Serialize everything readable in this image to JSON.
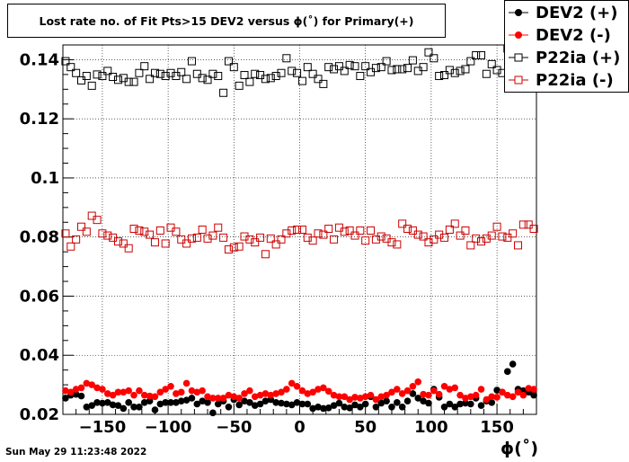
{
  "title": "Lost rate no. of Fit Pts>15 DEV2 versus ϕ(˚) for Primary(+)",
  "timestamp": "Sun May 29 11:23:48 2022",
  "colors": {
    "black": "#000000",
    "red": "#ff0000",
    "dark_red": "#cc0000"
  },
  "chart_data": {
    "type": "scatter",
    "xlabel": "ϕ(˚)",
    "ylabel": "",
    "xlim": [
      -180,
      180
    ],
    "ylim": [
      0.02,
      0.145
    ],
    "xticks": [
      -150,
      -100,
      -50,
      0,
      50,
      100,
      150
    ],
    "xtick_labels": [
      "−150",
      "−100",
      "−50",
      "0",
      "50",
      "100",
      "150"
    ],
    "yticks": [
      0.02,
      0.04,
      0.06,
      0.08,
      0.1,
      0.12,
      0.14
    ],
    "ytick_labels": [
      "0.02",
      "0.04",
      "0.06",
      "0.08",
      "0.1",
      "0.12",
      "0.14"
    ],
    "grid": true,
    "legend_position": "top-right",
    "x": [
      -178,
      -174,
      -170,
      -166,
      -162,
      -158,
      -154,
      -150,
      -146,
      -142,
      -138,
      -134,
      -130,
      -126,
      -122,
      -118,
      -114,
      -110,
      -106,
      -102,
      -98,
      -94,
      -90,
      -86,
      -82,
      -78,
      -74,
      -70,
      -66,
      -62,
      -58,
      -54,
      -50,
      -46,
      -42,
      -38,
      -34,
      -30,
      -26,
      -22,
      -18,
      -14,
      -10,
      -6,
      -2,
      2,
      6,
      10,
      14,
      18,
      22,
      26,
      30,
      34,
      38,
      42,
      46,
      50,
      54,
      58,
      62,
      66,
      70,
      74,
      78,
      82,
      86,
      90,
      94,
      98,
      102,
      106,
      110,
      114,
      118,
      122,
      126,
      130,
      134,
      138,
      142,
      146,
      150,
      154,
      158,
      162,
      166,
      170,
      174,
      178
    ],
    "series": [
      {
        "name": "DEV2 (+)",
        "marker": "filled-circle",
        "color": "#000000",
        "values": [
          0.0255,
          0.0265,
          0.0268,
          0.0262,
          0.0225,
          0.023,
          0.024,
          0.0238,
          0.024,
          0.0232,
          0.023,
          0.022,
          0.024,
          0.0225,
          0.0225,
          0.024,
          0.0245,
          0.0215,
          0.0235,
          0.024,
          0.024,
          0.024,
          0.0245,
          0.0248,
          0.0255,
          0.0235,
          0.0245,
          0.024,
          0.0205,
          0.0235,
          0.0245,
          0.0225,
          0.025,
          0.0232,
          0.0245,
          0.024,
          0.023,
          0.0235,
          0.0245,
          0.025,
          0.024,
          0.0238,
          0.0235,
          0.0232,
          0.024,
          0.0235,
          0.0235,
          0.022,
          0.0225,
          0.022,
          0.0222,
          0.023,
          0.0238,
          0.0225,
          0.0222,
          0.0232,
          0.0225,
          0.0235,
          0.026,
          0.0225,
          0.0238,
          0.0245,
          0.0225,
          0.024,
          0.0225,
          0.0245,
          0.027,
          0.0255,
          0.0245,
          0.0238,
          0.0285,
          0.0258,
          0.0225,
          0.0235,
          0.0225,
          0.0235,
          0.0238,
          0.0235,
          0.0255,
          0.023,
          0.0245,
          0.024,
          0.0282,
          0.0275,
          0.0345,
          0.037,
          0.0285,
          0.028,
          0.0275,
          0.0265
        ]
      },
      {
        "name": "DEV2 (-)",
        "marker": "filled-circle",
        "color": "#ff0000",
        "values": [
          0.028,
          0.0275,
          0.0285,
          0.029,
          0.0305,
          0.03,
          0.029,
          0.0285,
          0.027,
          0.0265,
          0.0275,
          0.0275,
          0.028,
          0.0265,
          0.028,
          0.0265,
          0.0262,
          0.026,
          0.0275,
          0.0285,
          0.0295,
          0.027,
          0.0275,
          0.0305,
          0.028,
          0.0275,
          0.028,
          0.026,
          0.0255,
          0.0255,
          0.0255,
          0.0265,
          0.026,
          0.0255,
          0.027,
          0.028,
          0.026,
          0.0265,
          0.027,
          0.0265,
          0.027,
          0.0275,
          0.0285,
          0.0305,
          0.0295,
          0.028,
          0.027,
          0.0275,
          0.0285,
          0.029,
          0.0278,
          0.0265,
          0.026,
          0.026,
          0.025,
          0.0258,
          0.0255,
          0.026,
          0.0265,
          0.025,
          0.026,
          0.0265,
          0.0275,
          0.0285,
          0.027,
          0.028,
          0.0295,
          0.031,
          0.0268,
          0.0265,
          0.028,
          0.0268,
          0.0295,
          0.0285,
          0.029,
          0.0265,
          0.0255,
          0.026,
          0.0265,
          0.0285,
          0.025,
          0.026,
          0.0258,
          0.0275,
          0.0265,
          0.026,
          0.0275,
          0.0265,
          0.0288,
          0.0285
        ]
      },
      {
        "name": "P22ia (+)",
        "marker": "open-square",
        "color": "#000000",
        "values": [
          0.1395,
          0.1375,
          0.1355,
          0.133,
          0.1345,
          0.1312,
          0.135,
          0.1345,
          0.1362,
          0.1342,
          0.1332,
          0.1338,
          0.1325,
          0.1325,
          0.1355,
          0.1378,
          0.1335,
          0.1355,
          0.1352,
          0.1345,
          0.1355,
          0.1345,
          0.1358,
          0.1335,
          0.1395,
          0.1352,
          0.1338,
          0.1332,
          0.1352,
          0.1345,
          0.1288,
          0.1395,
          0.1375,
          0.1312,
          0.1348,
          0.1325,
          0.1352,
          0.1348,
          0.1335,
          0.1338,
          0.1345,
          0.1355,
          0.1405,
          0.1362,
          0.1355,
          0.1328,
          0.1375,
          0.1352,
          0.1335,
          0.1318,
          0.1375,
          0.1368,
          0.1378,
          0.1362,
          0.1382,
          0.1378,
          0.1345,
          0.1378,
          0.1358,
          0.1372,
          0.1375,
          0.1395,
          0.1365,
          0.1368,
          0.1368,
          0.1372,
          0.1398,
          0.1362,
          0.1375,
          0.1425,
          0.1405,
          0.1345,
          0.1348,
          0.1365,
          0.1355,
          0.1362,
          0.1368,
          0.1395,
          0.1415,
          0.1415,
          0.1352,
          0.1385,
          0.1365,
          0.1355,
          0.1438,
          0.1378,
          0.1355,
          0.1345,
          0.1385,
          0.1372
        ]
      },
      {
        "name": "P22ia (-)",
        "marker": "open-square",
        "color": "#cc0000",
        "values": [
          0.0812,
          0.0768,
          0.0792,
          0.0835,
          0.0818,
          0.0872,
          0.0858,
          0.0812,
          0.0805,
          0.0798,
          0.0785,
          0.0778,
          0.0762,
          0.0828,
          0.0822,
          0.0818,
          0.0808,
          0.0782,
          0.0822,
          0.0778,
          0.0832,
          0.0818,
          0.0792,
          0.0778,
          0.0795,
          0.0798,
          0.0825,
          0.0795,
          0.0805,
          0.0832,
          0.0798,
          0.0758,
          0.0765,
          0.0768,
          0.0802,
          0.0792,
          0.0782,
          0.0798,
          0.0742,
          0.0795,
          0.0775,
          0.0792,
          0.0812,
          0.0822,
          0.0825,
          0.0825,
          0.0798,
          0.0788,
          0.0812,
          0.0808,
          0.0828,
          0.0792,
          0.0832,
          0.0818,
          0.0822,
          0.0805,
          0.0822,
          0.0788,
          0.0822,
          0.0792,
          0.0802,
          0.0795,
          0.0782,
          0.0775,
          0.0845,
          0.0828,
          0.0822,
          0.0808,
          0.0802,
          0.0782,
          0.0792,
          0.0808,
          0.0798,
          0.0825,
          0.0845,
          0.0805,
          0.0822,
          0.0772,
          0.0795,
          0.0785,
          0.0795,
          0.0805,
          0.0835,
          0.0802,
          0.0798,
          0.0812,
          0.0772,
          0.0842,
          0.0842,
          0.0828
        ]
      }
    ]
  }
}
